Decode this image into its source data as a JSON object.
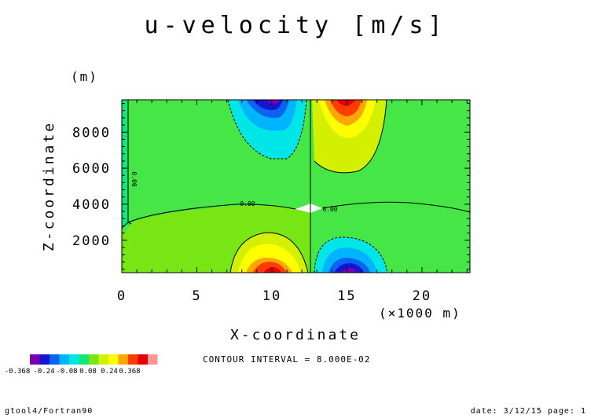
{
  "chart_data": {
    "type": "heatmap",
    "title": "u-velocity [m/s]",
    "xlabel": "X-coordinate",
    "ylabel": "Z-coordinate",
    "x_unit": "(×1000 m)",
    "y_unit": "(m)",
    "xlim": [
      0,
      23.2
    ],
    "ylim": [
      200,
      9800
    ],
    "x_ticks": [
      0,
      5,
      10,
      15,
      20
    ],
    "y_ticks": [
      2000,
      4000,
      6000,
      8000
    ],
    "x_tick_labels": [
      "0",
      "5",
      "10",
      "15",
      "20"
    ],
    "y_tick_labels": [
      "2000",
      "4000",
      "6000",
      "8000"
    ],
    "contour_interval_text": "CONTOUR INTERVAL = 8.000E-02",
    "contour_labels": [
      {
        "text": "0.00",
        "x": 8.6,
        "y": 4050
      },
      {
        "text": "0.00",
        "x": 13.8,
        "y": 3900
      },
      {
        "text": "0.00",
        "x": 0.55,
        "y": 7500,
        "vertical": true
      }
    ],
    "colorbar": {
      "colors": [
        "#7a00b0",
        "#1414d2",
        "#0a64f0",
        "#00b4ff",
        "#00e6e6",
        "#14e678",
        "#78e614",
        "#d2f000",
        "#ffff00",
        "#ffa500",
        "#ff3c00",
        "#e60000",
        "#ff9696"
      ],
      "labels": [
        "-0.368",
        "-0.24",
        "-0.08",
        "0.08",
        "0.24",
        "0.368"
      ]
    },
    "regions": [
      {
        "name": "upper-negative-cell",
        "x_center": 10.0,
        "x_half_width": 2.9,
        "z_top": 9800,
        "z_bottom": 6500,
        "sign": "negative",
        "peak": -0.368
      },
      {
        "name": "upper-positive-cell",
        "x_center": 14.6,
        "x_half_width": 3.6,
        "z_top": 9800,
        "z_bottom": 5800,
        "sign": "positive",
        "peak": 0.368
      },
      {
        "name": "lower-positive-cell",
        "x_center": 10.0,
        "x_half_width": 2.9,
        "z_top": 2900,
        "z_bottom": 200,
        "sign": "positive",
        "peak": 0.368
      },
      {
        "name": "lower-negative-cell",
        "x_center": 15.0,
        "x_half_width": 3.5,
        "z_top": 2700,
        "z_bottom": 200,
        "sign": "negative",
        "peak": -0.368
      }
    ]
  },
  "footer": {
    "left": "gtool4/Fortran90",
    "right": "date: 3/12/15 page: 1"
  }
}
